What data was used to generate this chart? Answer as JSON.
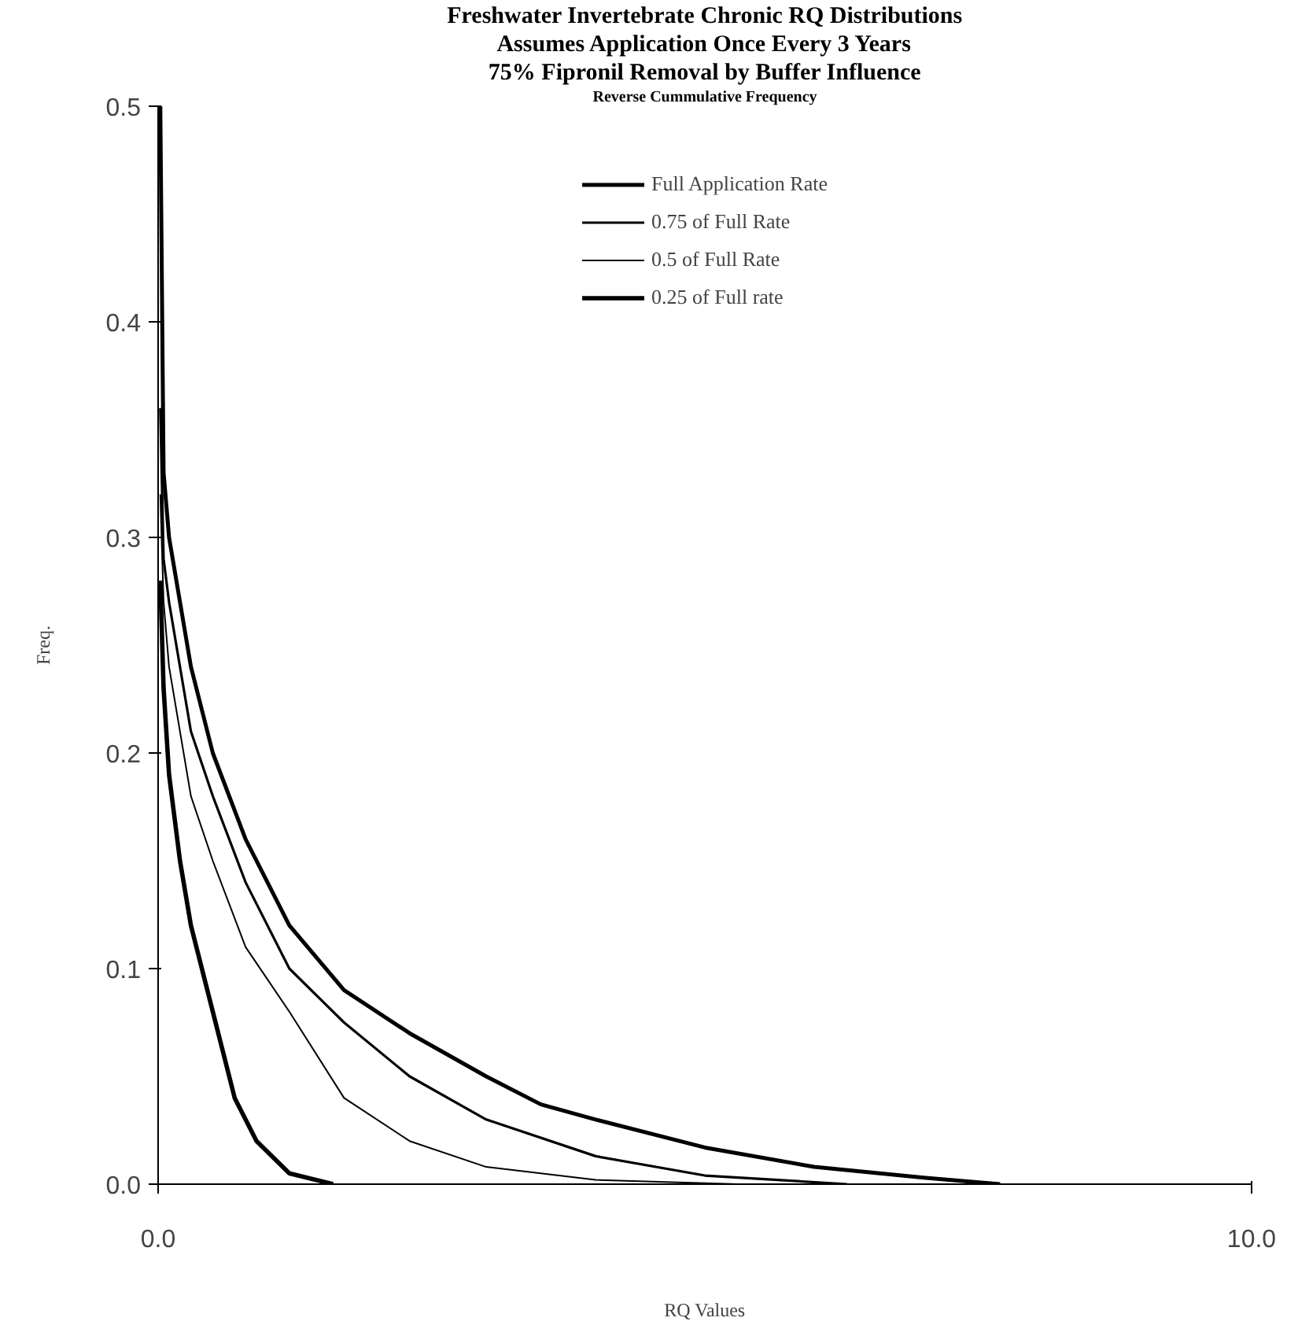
{
  "chart_data": {
    "type": "line",
    "title": "Freshwater Invertebrate Chronic RQ Distributions",
    "subtitle": "Assumes Application Once Every 3 Years",
    "annotations": [
      "75% Fipronil Removal by Buffer Influence",
      "Reverse Cummulative Frequency"
    ],
    "xlabel": "RQ Values",
    "ylabel": "Freq.",
    "xlim": [
      0,
      10
    ],
    "ylim": [
      0,
      0.5
    ],
    "xticks": [
      {
        "value": 0,
        "label": "0.0"
      },
      {
        "value": 10,
        "label": "10.0"
      }
    ],
    "yticks": [
      {
        "value": 0,
        "label": "0.0"
      },
      {
        "value": 0.1,
        "label": "0.1"
      },
      {
        "value": 0.2,
        "label": "0.2"
      },
      {
        "value": 0.3,
        "label": "0.3"
      },
      {
        "value": 0.4,
        "label": "0.4"
      },
      {
        "value": 0.5,
        "label": "0.5"
      }
    ],
    "grid": false,
    "legend": "top",
    "marker": "none",
    "line_style": "solid",
    "series": [
      {
        "name": "Full Application Rate",
        "color": "#000000",
        "x": [
          0.02,
          0.05,
          0.1,
          0.2,
          0.3,
          0.5,
          0.8,
          1.2,
          1.7,
          2.3,
          3.0,
          3.5,
          4.0,
          5.0,
          6.0,
          7.0,
          7.7
        ],
        "values": [
          0.5,
          0.33,
          0.3,
          0.27,
          0.24,
          0.2,
          0.16,
          0.12,
          0.09,
          0.07,
          0.05,
          0.037,
          0.03,
          0.017,
          0.008,
          0.003,
          0.0
        ]
      },
      {
        "name": "0.75 of Full Rate",
        "color": "#000000",
        "x": [
          0.02,
          0.05,
          0.1,
          0.2,
          0.3,
          0.5,
          0.8,
          1.2,
          1.7,
          2.3,
          3.0,
          4.0,
          5.0,
          6.3
        ],
        "values": [
          0.36,
          0.29,
          0.27,
          0.24,
          0.21,
          0.18,
          0.14,
          0.1,
          0.075,
          0.05,
          0.03,
          0.013,
          0.004,
          0.0
        ]
      },
      {
        "name": "0.5 of Full Rate",
        "color": "#000000",
        "x": [
          0.02,
          0.05,
          0.1,
          0.2,
          0.3,
          0.5,
          0.8,
          1.2,
          1.7,
          2.3,
          3.0,
          4.0,
          5.3
        ],
        "values": [
          0.32,
          0.27,
          0.24,
          0.21,
          0.18,
          0.15,
          0.11,
          0.08,
          0.04,
          0.02,
          0.008,
          0.002,
          0.0
        ]
      },
      {
        "name": "0.25 of Full rate",
        "color": "#000000",
        "x": [
          0.02,
          0.05,
          0.1,
          0.2,
          0.3,
          0.5,
          0.7,
          0.9,
          1.2,
          1.6
        ],
        "values": [
          0.28,
          0.23,
          0.19,
          0.15,
          0.12,
          0.08,
          0.04,
          0.02,
          0.005,
          0.0
        ]
      }
    ]
  }
}
